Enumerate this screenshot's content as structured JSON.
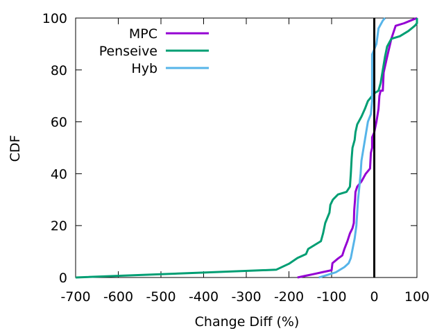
{
  "chart_data": {
    "type": "line",
    "title": "",
    "xlabel": "Change Diff (%)",
    "ylabel": "CDF",
    "xlim": [
      -700,
      100
    ],
    "ylim": [
      0,
      100
    ],
    "xticks": [
      -700,
      -600,
      -500,
      -400,
      -300,
      -200,
      -100,
      0,
      100
    ],
    "yticks": [
      0,
      20,
      40,
      60,
      80,
      100
    ],
    "grid": false,
    "legend_position": "top-left",
    "reference_line_x": 0,
    "series": [
      {
        "name": "MPC",
        "color": "#9400d3",
        "points": [
          [
            -180,
            0
          ],
          [
            -160,
            0.7
          ],
          [
            -140,
            1.4
          ],
          [
            -120,
            2.1
          ],
          [
            -100,
            2.8
          ],
          [
            -98,
            5.5
          ],
          [
            -85,
            7.3
          ],
          [
            -75,
            8.5
          ],
          [
            -70,
            11
          ],
          [
            -63,
            14
          ],
          [
            -57,
            17
          ],
          [
            -51,
            19
          ],
          [
            -48,
            21
          ],
          [
            -47,
            26
          ],
          [
            -45,
            30
          ],
          [
            -44,
            33
          ],
          [
            -40,
            35
          ],
          [
            -30,
            37
          ],
          [
            -20,
            40
          ],
          [
            -10,
            42
          ],
          [
            -8,
            48
          ],
          [
            -5,
            50
          ],
          [
            -5,
            54
          ],
          [
            0,
            56
          ],
          [
            5,
            60
          ],
          [
            10,
            65
          ],
          [
            12,
            70
          ],
          [
            15,
            72
          ],
          [
            20,
            72
          ],
          [
            22,
            79
          ],
          [
            30,
            85
          ],
          [
            40,
            92
          ],
          [
            50,
            97
          ],
          [
            70,
            98
          ],
          [
            85,
            99
          ],
          [
            100,
            100
          ]
        ]
      },
      {
        "name": "Penseive",
        "color": "#009e73",
        "points": [
          [
            -700,
            0
          ],
          [
            -400,
            1.9
          ],
          [
            -230,
            3
          ],
          [
            -200,
            5.3
          ],
          [
            -180,
            7.5
          ],
          [
            -160,
            9
          ],
          [
            -155,
            11
          ],
          [
            -125,
            14
          ],
          [
            -120,
            17
          ],
          [
            -115,
            21
          ],
          [
            -105,
            25
          ],
          [
            -103,
            28
          ],
          [
            -97,
            30
          ],
          [
            -85,
            32
          ],
          [
            -65,
            33
          ],
          [
            -57,
            35
          ],
          [
            -55,
            40
          ],
          [
            -53,
            46
          ],
          [
            -51,
            50
          ],
          [
            -46,
            53
          ],
          [
            -44,
            56
          ],
          [
            -40,
            59
          ],
          [
            -30,
            62
          ],
          [
            -22,
            65
          ],
          [
            -15,
            68
          ],
          [
            -5,
            70
          ],
          [
            0,
            71
          ],
          [
            10,
            72
          ],
          [
            15,
            75
          ],
          [
            20,
            80
          ],
          [
            25,
            85
          ],
          [
            30,
            89
          ],
          [
            40,
            92
          ],
          [
            60,
            93
          ],
          [
            80,
            95
          ],
          [
            95,
            97
          ],
          [
            100,
            98
          ],
          [
            100,
            100
          ]
        ]
      },
      {
        "name": "Hyb",
        "color": "#56b4e9",
        "points": [
          [
            -130,
            0
          ],
          [
            -110,
            1
          ],
          [
            -90,
            2
          ],
          [
            -70,
            4
          ],
          [
            -60,
            5.5
          ],
          [
            -55,
            7.5
          ],
          [
            -52,
            10
          ],
          [
            -46,
            15
          ],
          [
            -42,
            20
          ],
          [
            -40,
            25
          ],
          [
            -38,
            30
          ],
          [
            -35,
            35
          ],
          [
            -32,
            40
          ],
          [
            -30,
            45
          ],
          [
            -25,
            50
          ],
          [
            -20,
            55
          ],
          [
            -15,
            60
          ],
          [
            -8,
            63
          ],
          [
            -5,
            68
          ],
          [
            -5,
            75
          ],
          [
            -5,
            80
          ],
          [
            -5,
            86
          ],
          [
            5,
            90
          ],
          [
            10,
            96
          ],
          [
            20,
            99
          ],
          [
            25,
            100
          ]
        ]
      }
    ]
  }
}
